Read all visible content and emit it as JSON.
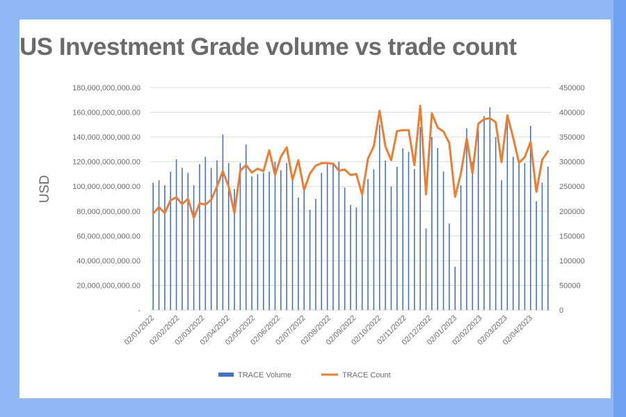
{
  "chart_data": {
    "type": "bar-line",
    "title": "US Investment Grade volume vs trade count",
    "ylabel": "USD",
    "y2label": "",
    "xlabel": "",
    "ylim": [
      0,
      180000000000
    ],
    "y2lim": [
      0,
      450000
    ],
    "yticks": [
      "-",
      "20,000,000,000.00",
      "40,000,000,000.00",
      "60,000,000,000.00",
      "80,000,000,000.00",
      "100,000,000,000.00",
      "120,000,000,000.00",
      "140,000,000,000.00",
      "160,000,000,000.00",
      "180,000,000,000.00"
    ],
    "y2ticks": [
      "0",
      "50000",
      "100000",
      "150000",
      "200000",
      "250000",
      "300000",
      "350000",
      "400000",
      "450000"
    ],
    "xticks": [
      "02/01/2022",
      "02/02/2022",
      "02/03/2022",
      "02/04/2022",
      "02/05/2022",
      "02/06/2022",
      "02/07/2022",
      "02/08/2022",
      "02/09/2022",
      "02/10/2022",
      "02/11/2022",
      "02/12/2022",
      "02/01/2023",
      "02/02/2023",
      "02/03/2023",
      "02/04/2023"
    ],
    "grid": true,
    "legend_position": "bottom",
    "series": [
      {
        "name": "TRACE Volume",
        "type": "bar",
        "axis": "left",
        "color": "#4472c4",
        "values": [
          103000000000,
          105000000000,
          101000000000,
          112000000000,
          122000000000,
          115000000000,
          111000000000,
          101000000000,
          118000000000,
          124000000000,
          115000000000,
          121000000000,
          142000000000,
          119000000000,
          98000000000,
          119000000000,
          134000000000,
          108000000000,
          110000000000,
          111000000000,
          112000000000,
          120000000000,
          113000000000,
          119000000000,
          109000000000,
          91000000000,
          99000000000,
          81000000000,
          90000000000,
          111000000000,
          118000000000,
          119000000000,
          120000000000,
          99000000000,
          85000000000,
          83000000000,
          93000000000,
          106000000000,
          114000000000,
          150000000000,
          121000000000,
          100000000000,
          116000000000,
          131000000000,
          128000000000,
          114000000000,
          148000000000,
          66000000000,
          140000000000,
          131000000000,
          112000000000,
          70000000000,
          35000000000,
          101000000000,
          147000000000,
          120000000000,
          146000000000,
          157000000000,
          164000000000,
          140000000000,
          105000000000,
          153000000000,
          124000000000,
          121000000000,
          119000000000,
          149000000000,
          88000000000,
          103000000000,
          116000000000
        ]
      },
      {
        "name": "TRACE Count",
        "type": "line",
        "axis": "right",
        "color": "#ed7d31",
        "values": [
          195000,
          208000,
          196000,
          222000,
          228000,
          214000,
          225000,
          186000,
          216000,
          213000,
          223000,
          250000,
          281000,
          250000,
          196000,
          282000,
          293000,
          278000,
          286000,
          281000,
          323000,
          273000,
          310000,
          329000,
          263000,
          303000,
          243000,
          276000,
          292000,
          297000,
          297000,
          296000,
          282000,
          284000,
          273000,
          275000,
          233000,
          306000,
          331000,
          403000,
          331000,
          303000,
          362000,
          364000,
          364000,
          293000,
          413000,
          234000,
          398000,
          369000,
          361000,
          338000,
          229000,
          276000,
          347000,
          276000,
          377000,
          386000,
          388000,
          380000,
          299000,
          394000,
          349000,
          298000,
          309000,
          340000,
          239000,
          304000,
          321000
        ]
      }
    ]
  }
}
